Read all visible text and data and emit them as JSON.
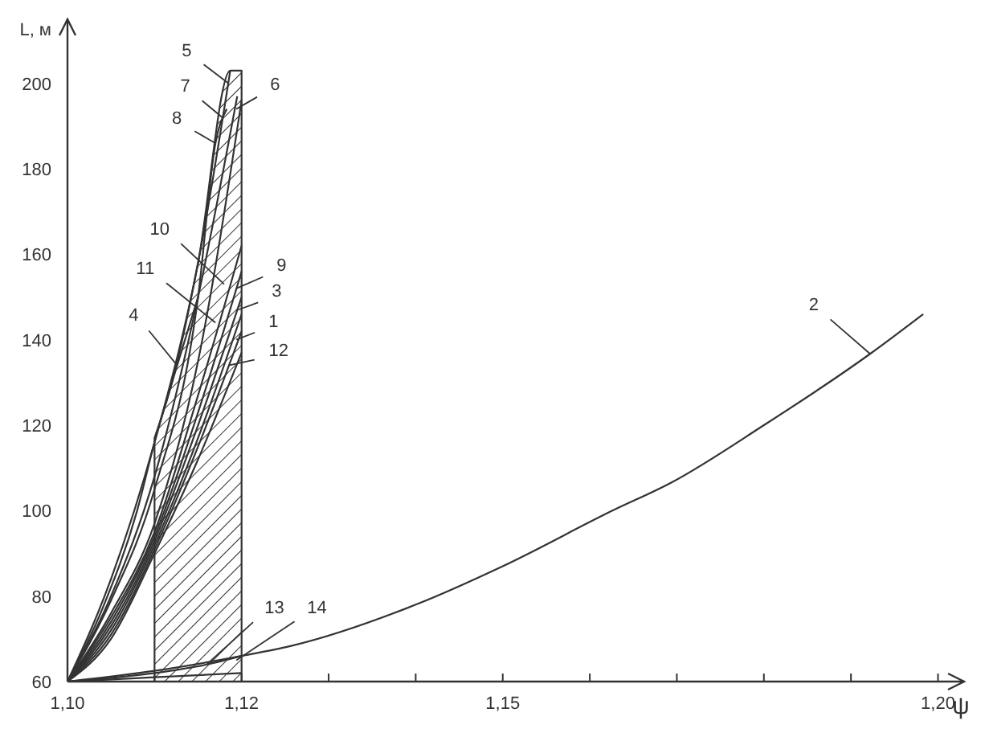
{
  "chart_data": {
    "type": "line",
    "xlabel": "ψ",
    "ylabel": "L, м",
    "xlim": [
      1.1,
      1.203
    ],
    "ylim": [
      60,
      215
    ],
    "xticks": [
      {
        "value": 1.1,
        "label": "1,10"
      },
      {
        "value": 1.11,
        "label": null
      },
      {
        "value": 1.12,
        "label": "1,12"
      },
      {
        "value": 1.13,
        "label": null
      },
      {
        "value": 1.14,
        "label": null
      },
      {
        "value": 1.15,
        "label": "1,15"
      },
      {
        "value": 1.16,
        "label": null
      },
      {
        "value": 1.17,
        "label": null
      },
      {
        "value": 1.18,
        "label": null
      },
      {
        "value": 1.19,
        "label": null
      },
      {
        "value": 1.2,
        "label": "1,20"
      }
    ],
    "yticks": [
      60,
      80,
      100,
      120,
      140,
      160,
      180,
      200
    ],
    "grid": false,
    "marker": "none",
    "line_style": "solid",
    "series": [
      {
        "type": "area",
        "color": "#333333",
        "x": [
          1.11,
          1.112,
          1.115,
          1.1187,
          1.12
        ],
        "values": [
          117,
          130,
          158,
          203,
          203
        ]
      },
      {
        "color": "#333333",
        "x": [
          1.1,
          1.105,
          1.11,
          1.115,
          1.1187
        ],
        "values": [
          60,
          84,
          116,
          158,
          203
        ]
      },
      {
        "color": "#333333",
        "x": [
          1.1,
          1.105,
          1.11,
          1.115,
          1.1195
        ],
        "values": [
          60,
          80,
          108,
          150,
          197
        ]
      },
      {
        "color": "#333333",
        "x": [
          1.1,
          1.105,
          1.11,
          1.115,
          1.117,
          1.1183
        ],
        "values": [
          60,
          79,
          105,
          150,
          186,
          194
        ]
      },
      {
        "color": "#333333",
        "x": [
          1.1,
          1.105,
          1.11,
          1.115,
          1.12
        ],
        "values": [
          60,
          76,
          97,
          135,
          196
        ]
      },
      {
        "color": "#333333",
        "x": [
          1.1,
          1.105,
          1.11,
          1.115,
          1.12
        ],
        "values": [
          60,
          75,
          95,
          127,
          162
        ]
      },
      {
        "color": "#333333",
        "x": [
          1.1,
          1.105,
          1.11,
          1.115,
          1.12
        ],
        "values": [
          60,
          74,
          94,
          123,
          156
        ]
      },
      {
        "color": "#333333",
        "x": [
          1.1,
          1.105,
          1.11,
          1.115,
          1.12
        ],
        "values": [
          60,
          73,
          93,
          120,
          150
        ]
      },
      {
        "color": "#333333",
        "x": [
          1.1,
          1.105,
          1.11,
          1.115,
          1.12
        ],
        "values": [
          60,
          72,
          92,
          117,
          146
        ]
      },
      {
        "color": "#333333",
        "x": [
          1.1,
          1.105,
          1.11,
          1.115,
          1.12
        ],
        "values": [
          60,
          71,
          91,
          115,
          142
        ]
      },
      {
        "color": "#333333",
        "x": [
          1.1,
          1.105,
          1.11,
          1.115,
          1.12
        ],
        "values": [
          60,
          70,
          90,
          112,
          137
        ]
      },
      {
        "color": "#333333",
        "x": [
          1.1,
          1.104,
          1.108,
          1.11,
          1.1126,
          1.115
        ],
        "values": [
          60,
          77,
          100,
          116,
          134,
          150
        ]
      },
      {
        "color": "#333333",
        "x": [
          1.1,
          1.11,
          1.116,
          1.12
        ],
        "values": [
          60,
          62,
          64,
          66
        ]
      },
      {
        "color": "#333333",
        "x": [
          1.1,
          1.11,
          1.12
        ],
        "values": [
          60,
          61,
          62
        ]
      },
      {
        "color": "#333333",
        "x": [
          1.1,
          1.11,
          1.12,
          1.1256,
          1.14,
          1.15,
          1.1626,
          1.1694,
          1.18,
          1.1922,
          1.1983
        ],
        "values": [
          60,
          62.5,
          66,
          68.3,
          78,
          87,
          100,
          106.6,
          120,
          136.7,
          146
        ]
      }
    ],
    "annotations": [
      {
        "text": "5",
        "x": 1.1185,
        "y": 200
      },
      {
        "text": "6",
        "x": 1.1194,
        "y": 194
      },
      {
        "text": "7",
        "x": 1.1178,
        "y": 192
      },
      {
        "text": "8",
        "x": 1.117,
        "y": 186
      },
      {
        "text": "10",
        "x": 1.118,
        "y": 153
      },
      {
        "text": "9",
        "x": 1.1194,
        "y": 152
      },
      {
        "text": "3",
        "x": 1.1196,
        "y": 147
      },
      {
        "text": "11",
        "x": 1.117,
        "y": 144
      },
      {
        "text": "1",
        "x": 1.1194,
        "y": 140
      },
      {
        "text": "12",
        "x": 1.1185,
        "y": 134
      },
      {
        "text": "4",
        "x": 1.1126,
        "y": 134
      },
      {
        "text": "13",
        "x": 1.116,
        "y": 64
      },
      {
        "text": "14",
        "x": 1.1194,
        "y": 65
      },
      {
        "text": "2",
        "x": 1.1922,
        "y": 136.7
      }
    ]
  }
}
